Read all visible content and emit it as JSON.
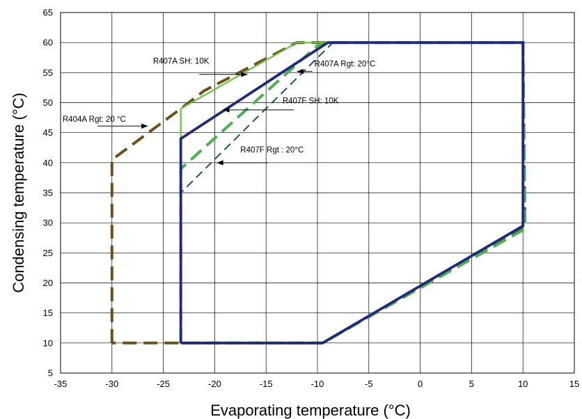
{
  "chart_data": {
    "type": "line",
    "title": "",
    "xlabel": "Evaporating  temperature (°C)",
    "ylabel": "Condensing temperature (°C)",
    "xlim": [
      -35,
      15
    ],
    "ylim": [
      5,
      65
    ],
    "x_ticks": [
      -35,
      -30,
      -25,
      -20,
      -15,
      -10,
      -5,
      0,
      5,
      10,
      15
    ],
    "y_ticks": [
      5,
      10,
      15,
      20,
      25,
      30,
      35,
      40,
      45,
      50,
      55,
      60,
      65
    ],
    "x_tick_labels": [
      "-35",
      "-30",
      "-25",
      "-20",
      "-15",
      "-10",
      "-5",
      "0",
      "5",
      "10",
      "15"
    ],
    "y_tick_labels": [
      "5",
      "10",
      "15",
      "20",
      "25",
      "30",
      "35",
      "40",
      "45",
      "50",
      "55",
      "60",
      "65"
    ],
    "grid": true,
    "series": [
      {
        "key": "r404a-rgt20",
        "color": "#6b4f1d",
        "style": "dashed-thick",
        "points": [
          [
            -30,
            10
          ],
          [
            -30,
            40.5
          ],
          [
            -23.3,
            49
          ],
          [
            -21,
            52
          ],
          [
            -12,
            60
          ],
          [
            10,
            60
          ],
          [
            10.2,
            29.5
          ],
          [
            -9.5,
            10
          ],
          [
            -30,
            10
          ]
        ]
      },
      {
        "key": "r407a-rgt20",
        "color": "#4caf50",
        "style": "dashed-thick",
        "points": [
          [
            -23.3,
            10
          ],
          [
            -23.3,
            39
          ],
          [
            -10,
            59.5
          ],
          [
            -9,
            60
          ],
          [
            10,
            60
          ],
          [
            10.2,
            29
          ],
          [
            -9.5,
            10
          ],
          [
            -23.3,
            10
          ]
        ]
      },
      {
        "key": "r407a-sh10",
        "color": "#6abf45",
        "style": "solid",
        "points": [
          [
            -23.3,
            10
          ],
          [
            -23.3,
            49
          ],
          [
            -12,
            60
          ],
          [
            10,
            60
          ],
          [
            10,
            29.5
          ],
          [
            -9.5,
            10
          ],
          [
            -23.3,
            10
          ]
        ]
      },
      {
        "key": "r407f-rgt20",
        "color": "#1f4e5f",
        "style": "dashed-thin",
        "points": [
          [
            -23.3,
            10
          ],
          [
            -23.3,
            35
          ],
          [
            -8.5,
            60
          ],
          [
            10,
            60
          ],
          [
            10,
            29.5
          ],
          [
            -9.5,
            10
          ],
          [
            -23.3,
            10
          ]
        ]
      },
      {
        "key": "r407f-sh10",
        "color": "#1f2a78",
        "style": "solid-thick",
        "points": [
          [
            -23.3,
            10
          ],
          [
            -23.3,
            44
          ],
          [
            -9,
            60
          ],
          [
            10,
            60
          ],
          [
            10,
            29.5
          ],
          [
            -9.5,
            10
          ],
          [
            -23.3,
            10
          ]
        ]
      }
    ],
    "annotations": [
      {
        "text": "R407A SH: 10K",
        "anchor": [
          -26,
          56.5
        ],
        "arrow_from": [
          -21.5,
          54.7
        ],
        "arrow_to": [
          -16.8,
          54.7
        ]
      },
      {
        "text": "R407A Rgt: 20°C",
        "anchor": [
          -10.3,
          56.0
        ],
        "arrow_from": [
          -10.5,
          55.2
        ],
        "arrow_to": [
          -12.0,
          55.2
        ]
      },
      {
        "text": "R407F SH: 10K",
        "anchor": [
          -13.4,
          49.9
        ],
        "arrow_from": [
          -12.3,
          48.8
        ],
        "arrow_to": [
          -19.2,
          48.8
        ]
      },
      {
        "text": "R404A Rgt: 20 °C",
        "anchor": [
          -34.8,
          46.8
        ],
        "arrow_from": [
          -31.4,
          46.1
        ],
        "arrow_to": [
          -26.5,
          46.1
        ]
      },
      {
        "text": "R407F Rgt : 20°C",
        "anchor": [
          -17.5,
          41.7
        ],
        "arrow_from": [
          -14.8,
          40.0
        ],
        "arrow_to": [
          -19.8,
          40.0
        ]
      }
    ]
  }
}
